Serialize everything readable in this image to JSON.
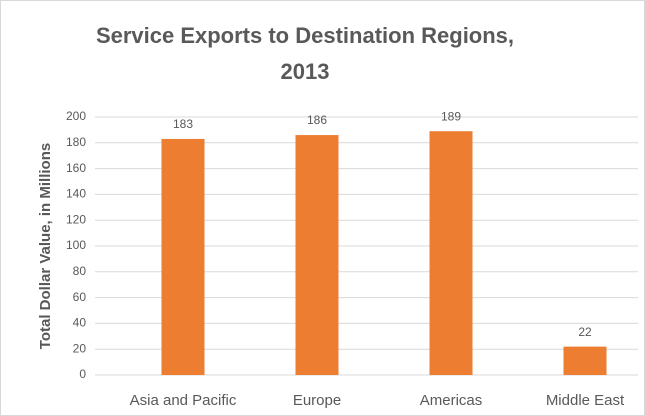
{
  "chart_data": {
    "type": "bar",
    "title": "Service Exports to Destination  Regions, 2013",
    "y_label": "Total Dollar Value, in Millions",
    "categories": [
      "Asia and Pacific",
      "Europe",
      "Americas",
      "Middle East"
    ],
    "values": [
      183,
      186,
      189,
      22
    ],
    "color": "#ed7d31",
    "ylim": [
      0,
      200
    ],
    "yticks": [
      0,
      20,
      40,
      60,
      80,
      100,
      120,
      140,
      160,
      180,
      200
    ],
    "grid": true
  }
}
